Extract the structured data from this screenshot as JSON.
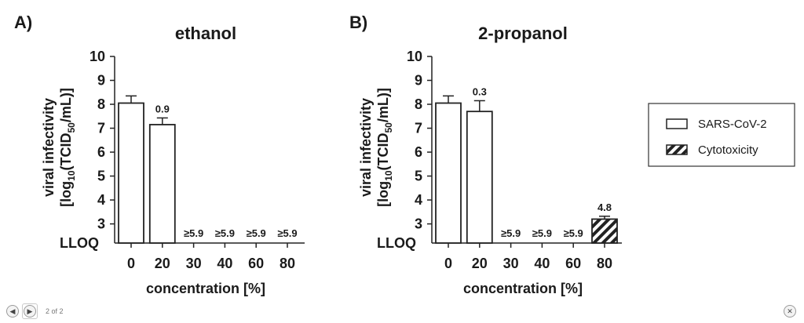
{
  "chart_data": [
    {
      "type": "bar",
      "panel_label": "A)",
      "title": "ethanol",
      "ylabel_line1": "viral infectivity",
      "ylabel_line2": [
        "[log",
        "10",
        "(TCID",
        "50",
        "/mL)]"
      ],
      "xlabel": "concentration [%]",
      "ylim": [
        2.2,
        10
      ],
      "yticks": [
        3,
        4,
        5,
        6,
        7,
        8,
        9,
        10
      ],
      "lloq_label": "LLOQ",
      "categories": [
        "0",
        "20",
        "30",
        "40",
        "60",
        "80"
      ],
      "series": [
        {
          "name": "SARS-CoV-2",
          "values": [
            8.05,
            7.15,
            null,
            null,
            null,
            null
          ],
          "errors": [
            0.3,
            0.28,
            null,
            null,
            null,
            null
          ]
        },
        {
          "name": "Cytotoxicity",
          "values": [
            null,
            null,
            null,
            null,
            null,
            null
          ],
          "errors": [
            null,
            null,
            null,
            null,
            null,
            null
          ]
        }
      ],
      "bar_labels": [
        "",
        "0.9",
        "≥5.9",
        "≥5.9",
        "≥5.9",
        "≥5.9"
      ]
    },
    {
      "type": "bar",
      "panel_label": "B)",
      "title": "2-propanol",
      "ylabel_line1": "viral infectivity",
      "ylabel_line2": [
        "[log",
        "10",
        "(TCID",
        "50",
        "/mL)]"
      ],
      "xlabel": "concentration [%]",
      "ylim": [
        2.2,
        10
      ],
      "yticks": [
        3,
        4,
        5,
        6,
        7,
        8,
        9,
        10
      ],
      "lloq_label": "LLOQ",
      "categories": [
        "0",
        "20",
        "30",
        "40",
        "60",
        "80"
      ],
      "series": [
        {
          "name": "SARS-CoV-2",
          "values": [
            8.05,
            7.7,
            null,
            null,
            null,
            null
          ],
          "errors": [
            0.3,
            0.45,
            null,
            null,
            null,
            null
          ]
        },
        {
          "name": "Cytotoxicity",
          "values": [
            null,
            null,
            null,
            null,
            null,
            3.2
          ],
          "errors": [
            null,
            null,
            null,
            null,
            null,
            0.12
          ]
        }
      ],
      "bar_labels": [
        "",
        "0.3",
        "≥5.9",
        "≥5.9",
        "≥5.9",
        "4.8"
      ]
    }
  ],
  "legend": {
    "items": [
      {
        "label": "SARS-CoV-2",
        "style": "plain"
      },
      {
        "label": "Cytotoxicity",
        "style": "hatched"
      }
    ],
    "placement": "right"
  },
  "colors": {
    "bar_fill": "#ffffff",
    "bar_stroke": "#222222",
    "hatch": "#222222",
    "text": "#1a1a1a"
  },
  "viewer": {
    "prev_icon": "◀",
    "next_icon": "▶",
    "page_indicator": "2 of 2",
    "close_icon": "✕"
  }
}
